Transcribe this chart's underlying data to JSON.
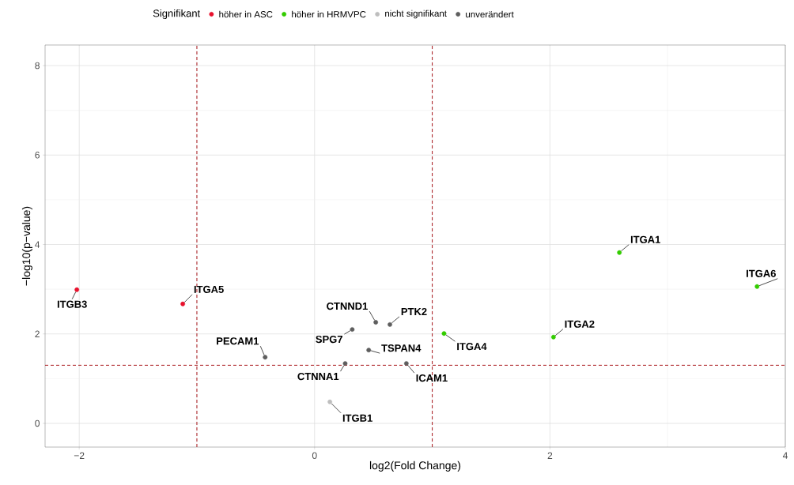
{
  "chart_data": {
    "type": "scatter",
    "xlabel": "log2(Fold Change)",
    "ylabel": "−log10(p−value)",
    "legend_title": "Signifikant",
    "xlim": [
      -2.29,
      4.0
    ],
    "ylim": [
      -0.53,
      8.46
    ],
    "xticks": [
      {
        "value": -2,
        "label": "−2"
      },
      0,
      2,
      4
    ],
    "yticks": [
      0,
      2,
      4,
      6,
      8
    ],
    "grid": true,
    "legend": "top",
    "marker": "circle",
    "series": [
      {
        "name": "höher in ASC",
        "color": "#e8112d",
        "x": [
          -2.02,
          -1.12
        ],
        "values": [
          2.99,
          2.67
        ]
      },
      {
        "name": "höher in HRMVPC",
        "color": "#33cc00",
        "x": [
          1.1,
          2.03,
          2.59,
          3.76
        ],
        "values": [
          2.01,
          1.93,
          3.82,
          3.06
        ]
      },
      {
        "name": "nicht signifikant",
        "color": "#bebebe",
        "x": [
          0.13
        ],
        "values": [
          0.48
        ]
      },
      {
        "name": "unverändert",
        "color": "#5e5e5e",
        "x": [
          -0.42,
          0.52,
          0.64,
          0.32,
          0.46,
          0.26,
          0.78
        ],
        "values": [
          1.48,
          2.26,
          2.21,
          2.1,
          1.64,
          1.34,
          1.34
        ]
      }
    ],
    "ref_lines": [
      {
        "axis": "x",
        "value": -1,
        "color": "#a8161b",
        "line_style": "dashed"
      },
      {
        "axis": "x",
        "value": 1,
        "color": "#a8161b",
        "line_style": "dashed"
      },
      {
        "axis": "y",
        "value": 1.3,
        "color": "#a8161b",
        "line_style": "dashed"
      }
    ],
    "annotations": [
      {
        "text": "ITGB3",
        "x": -2.02,
        "y": 2.99
      },
      {
        "text": "ITGA5",
        "x": -1.12,
        "y": 2.67
      },
      {
        "text": "PECAM1",
        "x": -0.42,
        "y": 1.48
      },
      {
        "text": "CTNND1",
        "x": 0.52,
        "y": 2.26
      },
      {
        "text": "PTK2",
        "x": 0.64,
        "y": 2.21
      },
      {
        "text": "SPG7",
        "x": 0.32,
        "y": 2.1
      },
      {
        "text": "TSPAN4",
        "x": 0.46,
        "y": 1.64
      },
      {
        "text": "CTNNA1",
        "x": 0.26,
        "y": 1.34
      },
      {
        "text": "ICAM1",
        "x": 0.78,
        "y": 1.34
      },
      {
        "text": "ITGB1",
        "x": 0.13,
        "y": 0.48
      },
      {
        "text": "ITGA4",
        "x": 1.1,
        "y": 2.01
      },
      {
        "text": "ITGA2",
        "x": 2.03,
        "y": 1.93
      },
      {
        "text": "ITGA1",
        "x": 2.59,
        "y": 3.82
      },
      {
        "text": "ITGA6",
        "x": 3.76,
        "y": 3.06
      }
    ]
  }
}
